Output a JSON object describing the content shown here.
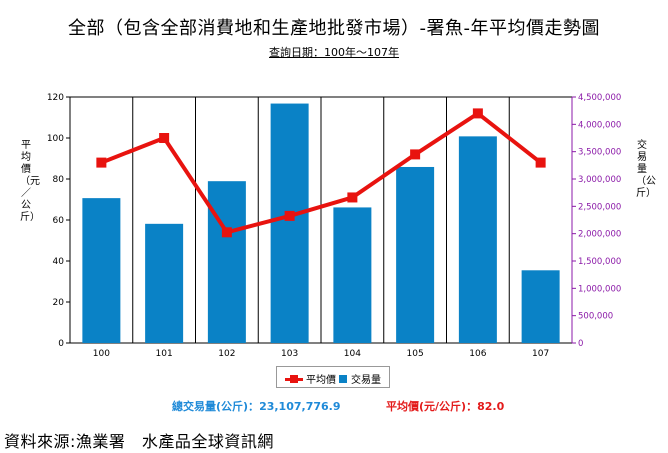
{
  "title": "全部（包含全部消費地和生產地批發市場）-署魚-年平均價走勢圖",
  "subtitle": "查詢日期：100年～107年",
  "left_axis_label": "平均價（元／公斤）",
  "right_axis_label": "交易量（公斤）",
  "legend": {
    "line": "平均價",
    "bar": "交易量"
  },
  "summary": {
    "volume_label": "總交易量(公斤)：",
    "volume_value": "23,107,776.9",
    "price_label": "平均價(元/公斤)：",
    "price_value": "82.0"
  },
  "source": "資料來源:漁業署　水產品全球資訊網",
  "colors": {
    "line": "#e8130f",
    "bar": "#0a82c6",
    "right_axis": "#8b1aa8",
    "left_axis": "#000000"
  },
  "chart_data": {
    "type": "bar+line",
    "categories": [
      "100",
      "101",
      "102",
      "103",
      "104",
      "105",
      "106",
      "107"
    ],
    "series": [
      {
        "name": "交易量",
        "type": "bar",
        "axis": "right",
        "values": [
          2650000,
          2180000,
          2960000,
          4380000,
          2480000,
          3220000,
          3780000,
          1330000
        ]
      },
      {
        "name": "平均價",
        "type": "line",
        "axis": "left",
        "values": [
          88,
          100,
          54,
          62,
          71,
          92,
          112,
          88
        ]
      }
    ],
    "left_axis": {
      "min": 0,
      "max": 120,
      "ticks": [
        "0",
        "20",
        "40",
        "60",
        "80",
        "100",
        "120"
      ]
    },
    "right_axis": {
      "min": 0,
      "max": 4500000,
      "ticks": [
        "0",
        "500,000",
        "1,000,000",
        "1,500,000",
        "2,000,000",
        "2,500,000",
        "3,000,000",
        "3,500,000",
        "4,000,000",
        "4,500,000"
      ]
    },
    "grid": "vertical"
  }
}
